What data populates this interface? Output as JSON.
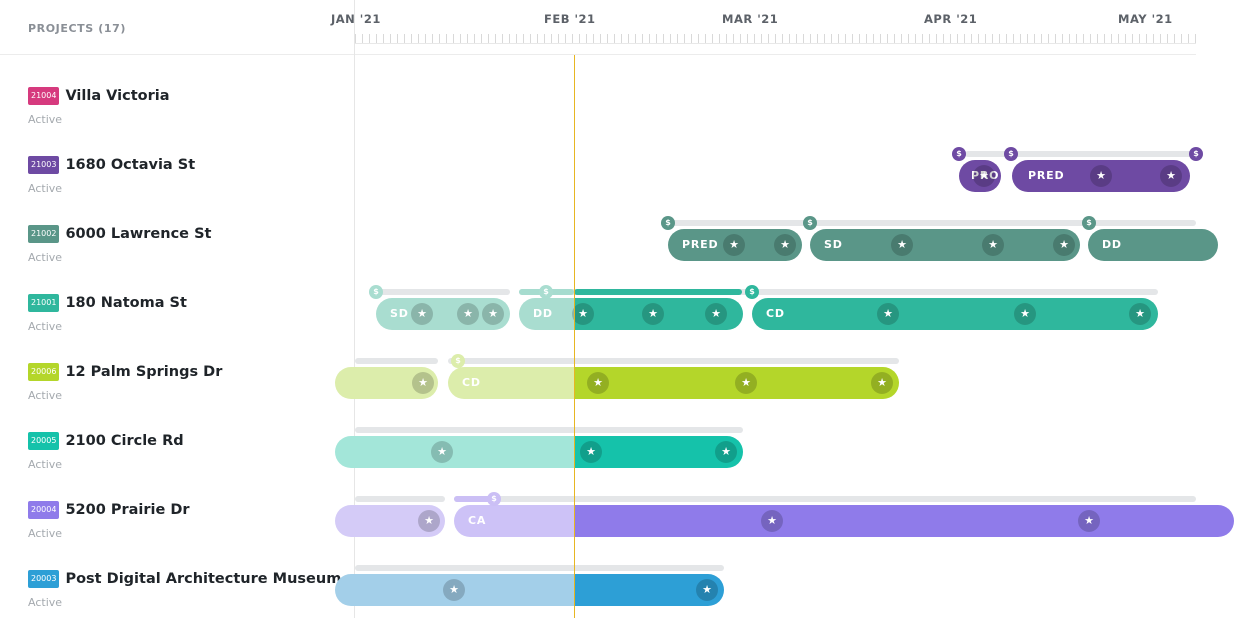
{
  "sidebar": {
    "header": "PROJECTS (17)",
    "projects": [
      {
        "code": "21004",
        "name": "Villa Victoria",
        "status": "Active",
        "color": "#d63a7e"
      },
      {
        "code": "21003",
        "name": "1680 Octavia St",
        "status": "Active",
        "color": "#6e4aa3"
      },
      {
        "code": "21002",
        "name": "6000 Lawrence St",
        "status": "Active",
        "color": "#5a9688"
      },
      {
        "code": "21001",
        "name": "180 Natoma St",
        "status": "Active",
        "color": "#2fb79d"
      },
      {
        "code": "20006",
        "name": "12 Palm Springs Dr",
        "status": "Active",
        "color": "#b4d62a"
      },
      {
        "code": "20005",
        "name": "2100 Circle Rd",
        "status": "Active",
        "color": "#15c2aa"
      },
      {
        "code": "20004",
        "name": "5200 Prairie Dr",
        "status": "Active",
        "color": "#8f7bea"
      },
      {
        "code": "20003",
        "name": "Post Digital Architecture Museum",
        "status": "Active",
        "color": "#2d9fd6"
      }
    ]
  },
  "timeline": {
    "months": [
      "JAN '21",
      "FEB '21",
      "MAR '21",
      "APR '21",
      "MAY '21"
    ],
    "phases": {
      "octavia_pro": "PRO",
      "octavia_pred": "PRED",
      "lawrence_pred": "PRED",
      "lawrence_sd": "SD",
      "lawrence_dd": "DD",
      "natoma_sd": "SD",
      "natoma_dd": "DD",
      "natoma_cd": "CD",
      "palm_cd": "CD",
      "prairie_ca": "CA"
    },
    "icons": {
      "milestone": "star-icon",
      "fee": "dollar-icon"
    },
    "glyphs": {
      "star": "★",
      "dollar": "$"
    }
  }
}
